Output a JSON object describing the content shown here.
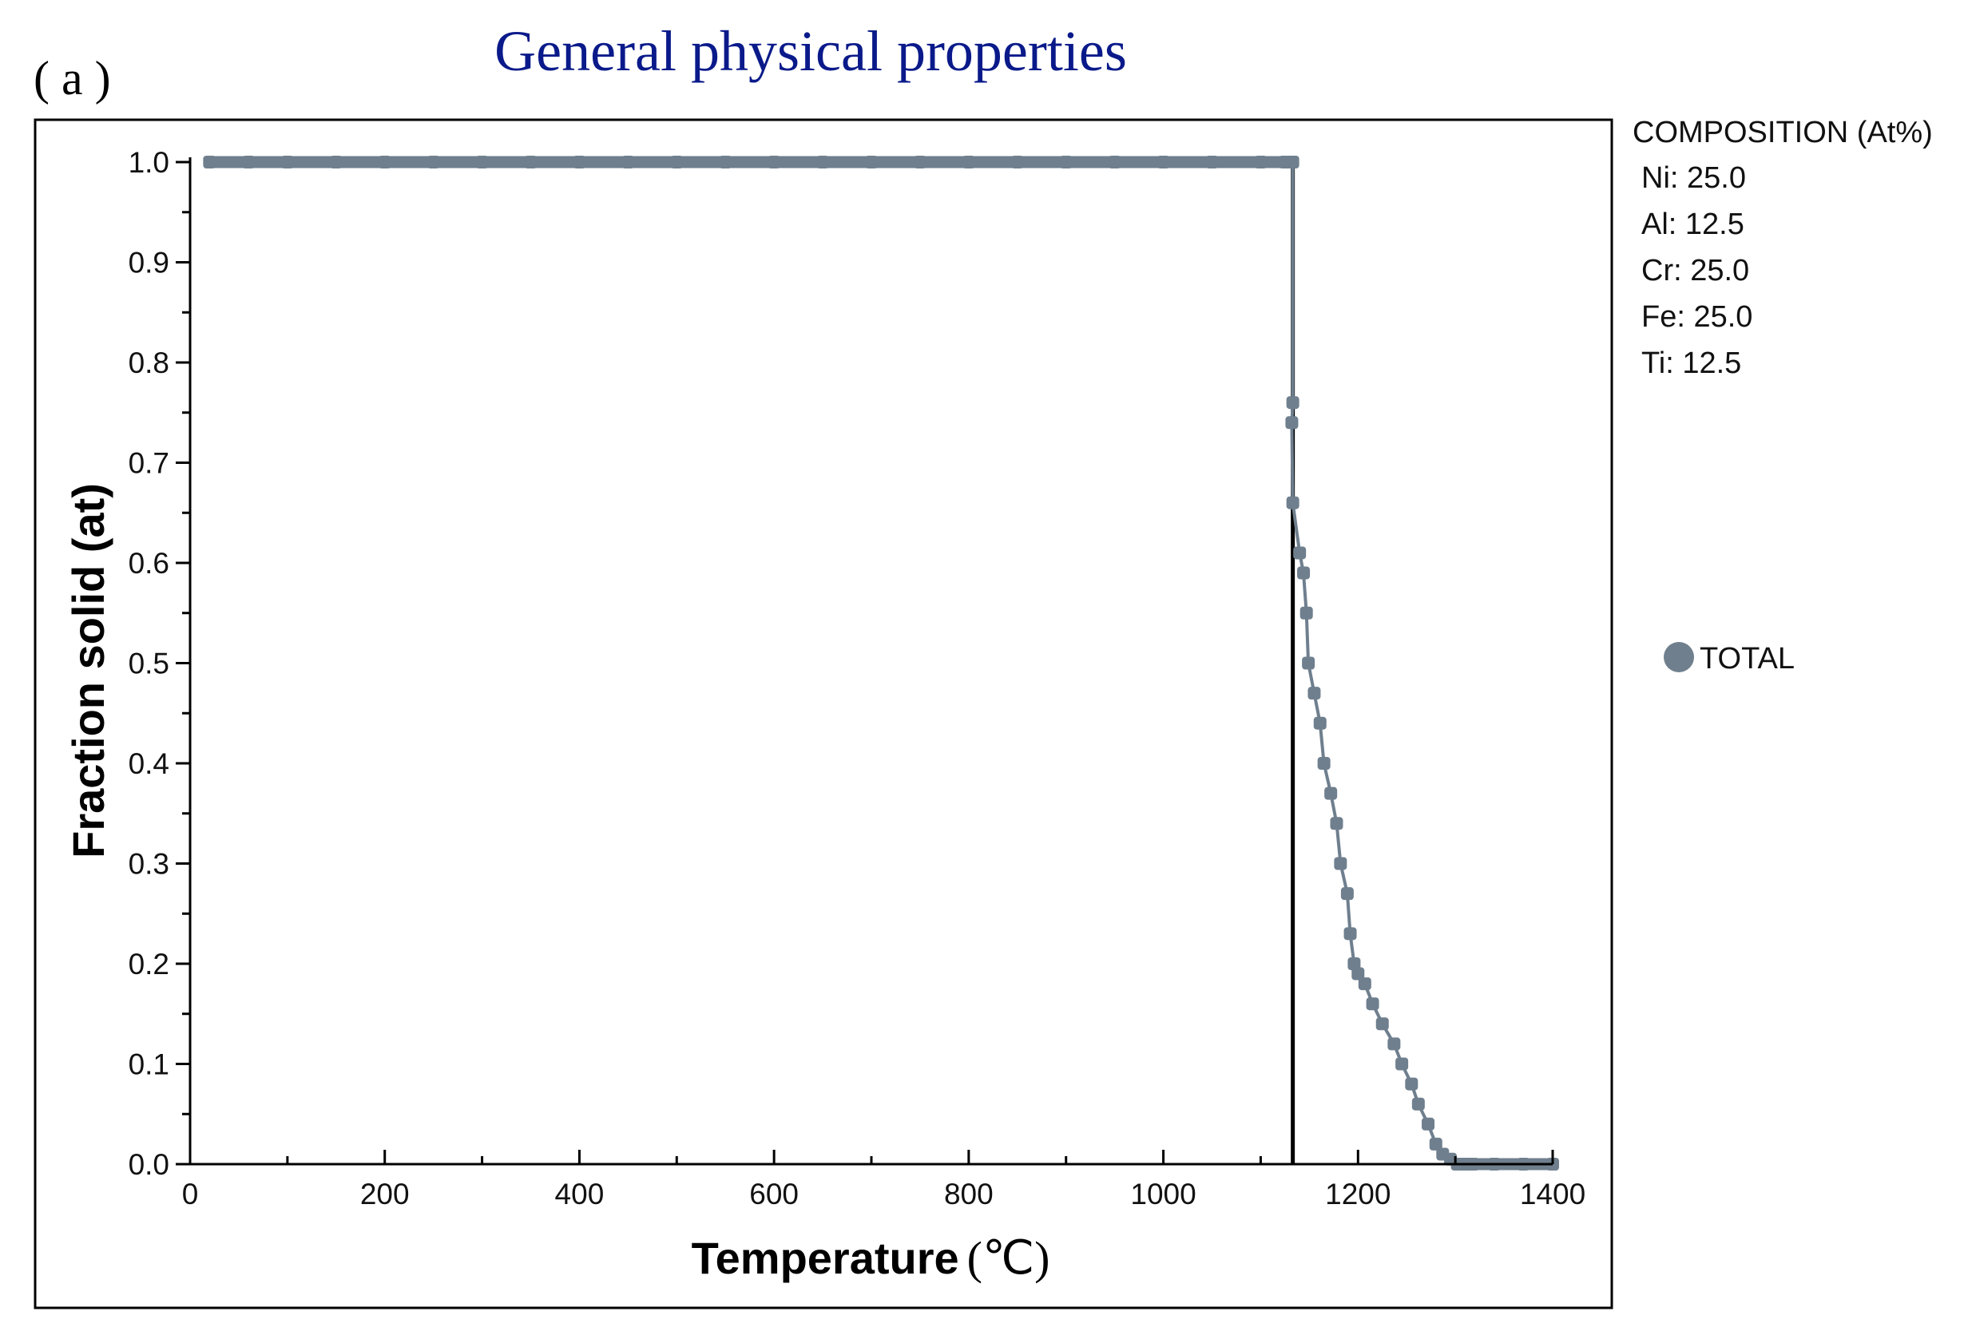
{
  "panel_label": "( a )",
  "colors": {
    "series": "#6f7f8e",
    "title": "#0a1a8a",
    "axis": "#000000"
  },
  "chart_data": {
    "type": "line",
    "title": "General physical properties",
    "xlabel": "Temperature",
    "xunit": "(℃)",
    "ylabel": "Fraction solid (at)",
    "xlim": [
      0,
      1400
    ],
    "ylim": [
      0,
      1.0
    ],
    "xticks": [
      "0",
      "200",
      "400",
      "600",
      "800",
      "1000",
      "1200",
      "1400"
    ],
    "yticks": [
      "0.0",
      "0.1",
      "0.2",
      "0.3",
      "0.4",
      "0.5",
      "0.6",
      "0.7",
      "0.8",
      "0.9",
      "1.0"
    ],
    "grid": false,
    "legend_position": "right",
    "reference_line_x": 1133,
    "series": [
      {
        "name": "TOTAL",
        "x": [
          20,
          60,
          100,
          150,
          200,
          250,
          300,
          350,
          400,
          450,
          500,
          550,
          600,
          650,
          700,
          750,
          800,
          850,
          900,
          950,
          1000,
          1050,
          1100,
          1125,
          1133,
          1133,
          1132,
          1133,
          1140,
          1144,
          1147,
          1149,
          1155,
          1161,
          1165,
          1172,
          1178,
          1182,
          1189,
          1192,
          1196,
          1200,
          1207,
          1215,
          1225,
          1237,
          1245,
          1255,
          1262,
          1272,
          1280,
          1287,
          1295,
          1302,
          1308,
          1313,
          1318,
          1340,
          1370,
          1400
        ],
        "y": [
          1.0,
          1.0,
          1.0,
          1.0,
          1.0,
          1.0,
          1.0,
          1.0,
          1.0,
          1.0,
          1.0,
          1.0,
          1.0,
          1.0,
          1.0,
          1.0,
          1.0,
          1.0,
          1.0,
          1.0,
          1.0,
          1.0,
          1.0,
          1.0,
          1.0,
          0.76,
          0.74,
          0.66,
          0.61,
          0.59,
          0.55,
          0.5,
          0.47,
          0.44,
          0.4,
          0.37,
          0.34,
          0.3,
          0.27,
          0.23,
          0.2,
          0.19,
          0.18,
          0.16,
          0.14,
          0.12,
          0.1,
          0.08,
          0.06,
          0.04,
          0.02,
          0.01,
          0.005,
          0.0,
          0.0,
          0.0,
          0.0,
          0.0,
          0.0,
          0.0
        ]
      }
    ]
  },
  "composition": {
    "header": "COMPOSITION (At%)",
    "items": [
      "Ni: 25.0",
      "Al: 12.5",
      "Cr: 25.0",
      "Fe: 25.0",
      "Ti: 12.5"
    ]
  }
}
